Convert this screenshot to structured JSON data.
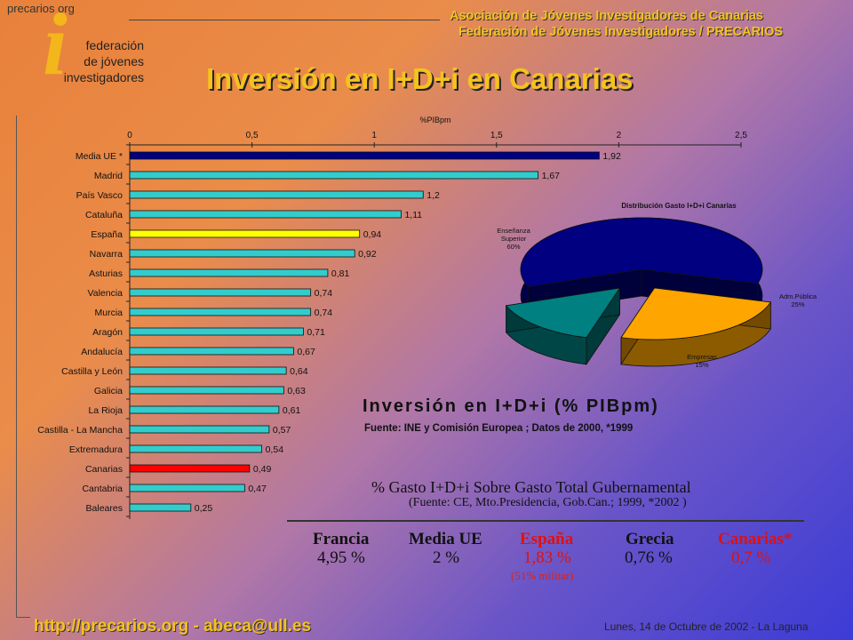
{
  "header": {
    "logo_site": "precarios org",
    "logo_letter": "i",
    "logo_lines": [
      "federación",
      "de jóvenes",
      "investigadores"
    ],
    "org_line1": "Asociación de Jóvenes Investigadores de Canarias",
    "org_line2": "Federación de Jóvenes Investigadores / PRECARIOS",
    "title": "Inversión en I+D+i en Canarias"
  },
  "chart_data": [
    {
      "type": "bar",
      "orientation": "horizontal",
      "title": "%PIBpm",
      "xlim": [
        0,
        2.5
      ],
      "ticks": [
        "0",
        "0,5",
        "1",
        "1,5",
        "2",
        "2,5"
      ],
      "categories": [
        "Media UE *",
        "Madrid",
        "País Vasco",
        "Cataluña",
        "España",
        "Navarra",
        "Asturias",
        "Valencia",
        "Murcia",
        "Aragón",
        "Andalucía",
        "Castilla y León",
        "Galicia",
        "La Rioja",
        "Castilla - La Mancha",
        "Extremadura",
        "Canarias",
        "Cantabria",
        "Baleares"
      ],
      "values": [
        1.92,
        1.67,
        1.2,
        1.11,
        0.94,
        0.92,
        0.81,
        0.74,
        0.74,
        0.71,
        0.67,
        0.64,
        0.63,
        0.61,
        0.57,
        0.54,
        0.49,
        0.47,
        0.25
      ],
      "value_labels": [
        "1,92",
        "1,67",
        "1,2",
        "1,11",
        "0,94",
        "0,92",
        "0,81",
        "0,74",
        "0,74",
        "0,71",
        "0,67",
        "0,64",
        "0,63",
        "0,61",
        "0,57",
        "0,54",
        "0,49",
        "0,47",
        "0,25"
      ],
      "colors": [
        "#000080",
        "#33cccc",
        "#33cccc",
        "#33cccc",
        "#ffff00",
        "#33cccc",
        "#33cccc",
        "#33cccc",
        "#33cccc",
        "#33cccc",
        "#33cccc",
        "#33cccc",
        "#33cccc",
        "#33cccc",
        "#33cccc",
        "#33cccc",
        "#ff0000",
        "#33cccc",
        "#33cccc"
      ]
    },
    {
      "type": "pie",
      "title": "Distribución Gasto I+D+i Canarias",
      "slices": [
        {
          "label": "Enseñanza Superior",
          "pct_label": "60%",
          "value": 60,
          "color": "#000080"
        },
        {
          "label": "Adm.Pública",
          "pct_label": "25%",
          "value": 25,
          "color": "#ffa500"
        },
        {
          "label": "Empresas",
          "pct_label": "15%",
          "value": 15,
          "color": "#008080"
        }
      ]
    }
  ],
  "investment": {
    "title": "Inversión en I+D+i (% PIBpm)",
    "source": "Fuente: INE y  Comisión Europea ; Datos de 2000, *1999"
  },
  "gasto": {
    "title": "% Gasto I+D+i Sobre Gasto Total Gubernamental",
    "source": "(Fuente: CE, Mto.Presidencia, Gob.Can.; 1999, *2002 )",
    "items": [
      {
        "name": "Francia",
        "value": "4,95 %",
        "color": "#111111"
      },
      {
        "name": "Media UE",
        "value": "2 %",
        "color": "#111111"
      },
      {
        "name": "España",
        "value": "1,83 %",
        "color": "#dd1111"
      },
      {
        "name": "Grecia",
        "value": "0,76 %",
        "color": "#111111"
      },
      {
        "name": "Canarias*",
        "value": "0,7 %",
        "color": "#dd1111"
      }
    ],
    "note": "(51% militar)"
  },
  "footer": {
    "link": "http://precarios.org  -  abeca@ull.es",
    "date": "Lunes, 14 de Octubre de 2002 - La Laguna"
  }
}
